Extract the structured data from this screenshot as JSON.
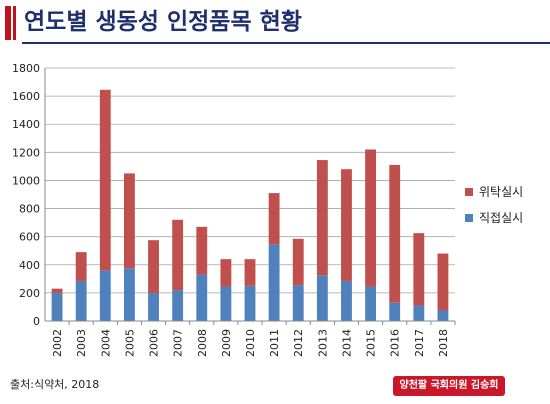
{
  "title": "연도별 생동성 인정품목 현황",
  "source": "출처:식약처, 2018",
  "credit": "양천팔 국회의원 김승희",
  "chart_data": {
    "type": "bar",
    "stacked": true,
    "categories": [
      "2002",
      "2003",
      "2004",
      "2005",
      "2006",
      "2007",
      "2008",
      "2009",
      "2010",
      "2011",
      "2012",
      "2013",
      "2014",
      "2015",
      "2016",
      "2017",
      "2018"
    ],
    "series": [
      {
        "name": "직접실시",
        "color": "#4f81bd",
        "values": [
          200,
          285,
          360,
          375,
          200,
          220,
          330,
          245,
          250,
          545,
          255,
          325,
          285,
          245,
          130,
          110,
          75
        ]
      },
      {
        "name": "위탁실시",
        "color": "#c0504d",
        "values": [
          30,
          205,
          1285,
          675,
          375,
          500,
          340,
          195,
          190,
          365,
          330,
          820,
          795,
          975,
          980,
          515,
          405
        ]
      }
    ],
    "ylim": [
      0,
      1800
    ],
    "yticks": [
      0,
      200,
      400,
      600,
      800,
      1000,
      1200,
      1400,
      1600,
      1800
    ],
    "grid": true,
    "legend_position": "right"
  }
}
